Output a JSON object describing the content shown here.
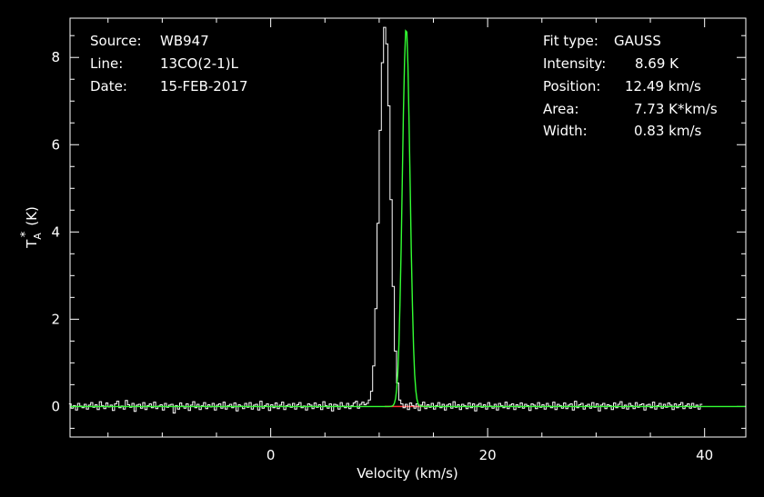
{
  "header_left": {
    "source_label": "Source:",
    "source_value": "WB947",
    "line_label": "Line:",
    "line_value": "13CO(2-1)L",
    "date_label": "Date:",
    "date_value": "15-FEB-2017"
  },
  "header_right": {
    "fit_type_label": "Fit type:",
    "fit_type_value": "GAUSS",
    "intensity_label": "Intensity:",
    "intensity_value": "8.69 K",
    "position_label": "Position:",
    "position_value": "12.49 km/s",
    "area_label": "Area:",
    "area_value": "7.73 K*km/s",
    "width_label": "Width:",
    "width_value": "0.83 km/s"
  },
  "colors": {
    "background": "#000000",
    "axes": "#ffffff",
    "spectrum": "#ffffff",
    "fit": "#33ff33",
    "baseline": "#ff3333"
  },
  "chart_data": {
    "type": "line",
    "xlabel": "Velocity (km/s)",
    "ylabel_main": "T",
    "ylabel_sup": "*",
    "ylabel_sub": "A",
    "ylabel_unit": "(K)",
    "xlim": [
      -18.5,
      43.8
    ],
    "ylim": [
      -0.7,
      8.9
    ],
    "x_ticks": [
      0,
      20,
      40
    ],
    "y_ticks": [
      0,
      2,
      4,
      6,
      8
    ],
    "x_minor_step": 5,
    "y_minor_step": 0.5,
    "grid": false,
    "series": [
      {
        "role": "spectrum",
        "x_start": -18.5,
        "x_step": 0.2,
        "values": [
          0.06,
          -0.04,
          0.02,
          -0.08,
          0.07,
          0.01,
          -0.03,
          0.05,
          -0.06,
          0.03,
          0.09,
          -0.02,
          0.04,
          -0.07,
          0.11,
          0.02,
          -0.05,
          0.08,
          -0.01,
          0.03,
          -0.09,
          0.06,
          0.12,
          -0.03,
          0.01,
          -0.06,
          0.14,
          0.04,
          -0.02,
          0.07,
          -0.11,
          0.03,
          0.05,
          -0.04,
          0.09,
          -0.07,
          0.02,
          0.06,
          -0.03,
          0.1,
          -0.05,
          0.01,
          0.04,
          -0.08,
          0.07,
          -0.02,
          0.03,
          0.05,
          -0.15,
          0.02,
          -0.06,
          0.08,
          0.01,
          -0.04,
          0.06,
          -0.09,
          0.03,
          0.11,
          -0.03,
          0.05,
          -0.07,
          0.02,
          0.09,
          -0.05,
          0.04,
          -0.01,
          0.07,
          -0.08,
          0.03,
          0.06,
          -0.04,
          0.1,
          -0.06,
          0.02,
          0.05,
          -0.03,
          0.08,
          -0.1,
          0.04,
          0.01,
          -0.05,
          0.07,
          -0.02,
          0.09,
          -0.06,
          0.03,
          0.05,
          -0.08,
          0.12,
          -0.04,
          0.02,
          0.06,
          -0.09,
          0.04,
          -0.03,
          0.08,
          -0.05,
          0.03,
          0.1,
          -0.07,
          0.02,
          0.05,
          -0.02,
          0.07,
          -0.06,
          0.04,
          0.09,
          -0.03,
          0.01,
          -0.08,
          0.06,
          0.03,
          -0.05,
          0.08,
          -0.02,
          0.04,
          -0.07,
          0.11,
          0.02,
          -0.04,
          0.06,
          -0.1,
          0.05,
          0.03,
          -0.06,
          0.09,
          0.01,
          -0.03,
          0.07,
          -0.05,
          0.02,
          0.08,
          0.12,
          -0.04,
          0.05,
          0.1,
          0.04,
          0.07,
          0.15,
          0.35,
          0.93,
          2.24,
          4.2,
          6.33,
          7.88,
          8.69,
          8.31,
          6.89,
          4.74,
          2.75,
          1.27,
          0.54,
          0.15,
          0.06,
          -0.03,
          0.05,
          -0.07,
          0.08,
          0.02,
          -0.04,
          0.06,
          -0.09,
          0.03,
          0.1,
          -0.05,
          0.04,
          -0.02,
          0.07,
          -0.06,
          0.02,
          0.09,
          -0.03,
          0.05,
          -0.08,
          0.03,
          0.06,
          -0.04,
          0.11,
          -0.02,
          0.04,
          -0.07,
          0.05,
          0.02,
          -0.05,
          0.08,
          -0.03,
          0.06,
          -0.1,
          0.03,
          0.07,
          -0.02,
          0.04,
          -0.06,
          0.09,
          0.01,
          -0.04,
          0.05,
          -0.08,
          0.07,
          0.02,
          -0.03,
          0.1,
          -0.05,
          0.03,
          0.06,
          -0.07,
          0.04,
          -0.02,
          0.08,
          -0.04,
          0.05,
          0.02,
          -0.09,
          0.06,
          0.03,
          -0.05,
          0.09,
          -0.02,
          0.04,
          -0.06,
          0.07,
          0.01,
          -0.03,
          0.1,
          -0.07,
          0.05,
          0.02,
          -0.04,
          0.08,
          -0.05,
          0.03,
          0.06,
          -0.08,
          0.12,
          -0.03,
          0.04,
          0.07,
          -0.06,
          0.02,
          0.05,
          -0.04,
          0.09,
          -0.02,
          0.06,
          -0.1,
          0.03,
          0.07,
          -0.05,
          0.04,
          0.02,
          -0.07,
          0.08,
          -0.03,
          0.05,
          0.11,
          -0.04,
          0.03,
          -0.06,
          0.07,
          0.02,
          -0.05,
          0.09,
          -0.02,
          0.04,
          0.06,
          -0.08,
          0.03,
          0.05,
          -0.03,
          0.1,
          -0.06,
          0.02,
          0.07,
          -0.04,
          0.05,
          -0.02,
          0.08,
          0.03,
          -0.07,
          0.06,
          -0.03,
          0.04,
          0.09,
          -0.05,
          0.02,
          0.06,
          -0.04,
          0.07,
          -0.02,
          0.03,
          -0.06,
          0.05
        ]
      },
      {
        "role": "gaussian-fit",
        "center": 12.49,
        "peak": 8.69,
        "fwhm": 0.83
      },
      {
        "role": "baseline",
        "x_range": [
          10.5,
          14.5
        ],
        "value": 0
      }
    ]
  }
}
